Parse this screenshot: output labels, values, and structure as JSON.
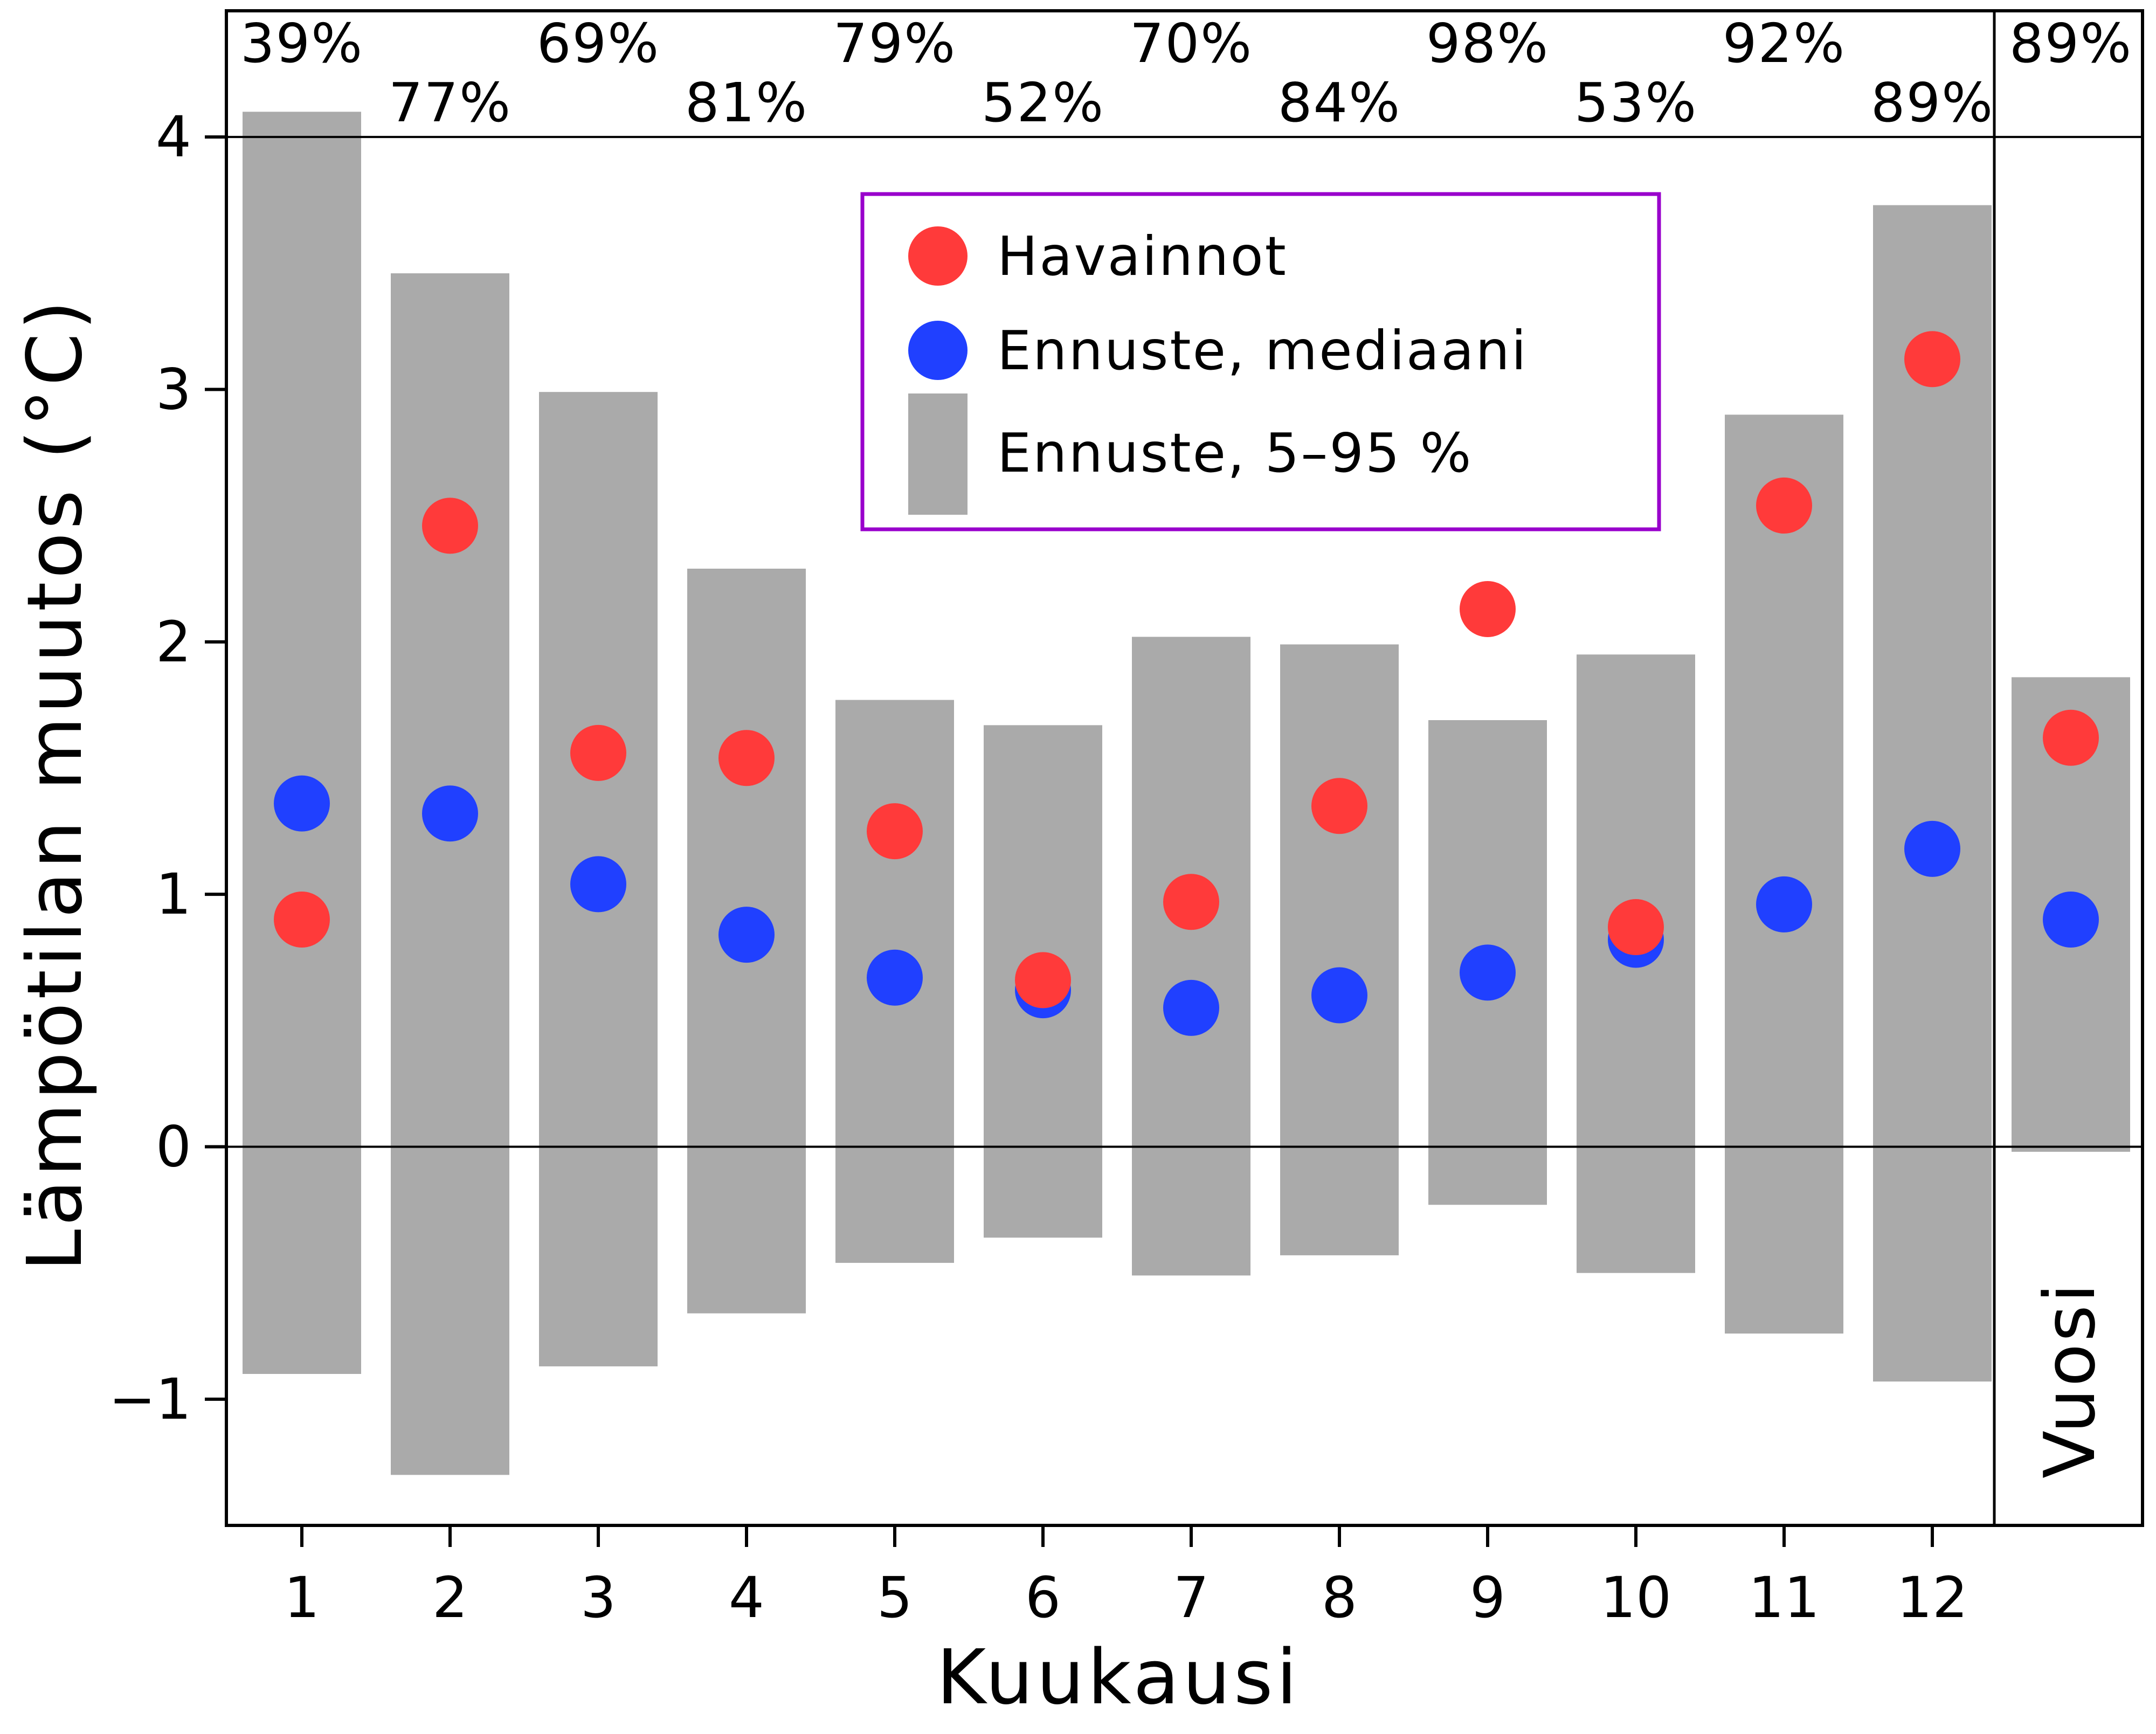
{
  "chart_data": {
    "type": "bar",
    "xlabel": "Kuukausi",
    "ylabel": "Lämpötilan muutos (°C)",
    "ylim": [
      -1.5,
      4.5
    ],
    "yticks": [
      -1,
      0,
      1,
      2,
      3,
      4
    ],
    "ytick_labels": [
      "−1",
      "0",
      "1",
      "2",
      "3",
      "4"
    ],
    "categories": [
      "1",
      "2",
      "3",
      "4",
      "5",
      "6",
      "7",
      "8",
      "9",
      "10",
      "11",
      "12"
    ],
    "annual_panel_label": "Vuosi",
    "reference_lines": [
      0,
      4
    ],
    "series": [
      {
        "name": "Ennuste, 5–95 %",
        "kind": "range",
        "color": "#aaaaaa",
        "low": [
          -0.9,
          -1.3,
          -0.87,
          -0.66,
          -0.46,
          -0.36,
          -0.51,
          -0.43,
          -0.23,
          -0.5,
          -0.74,
          -0.93
        ],
        "high": [
          4.1,
          3.46,
          2.99,
          2.29,
          1.77,
          1.67,
          2.02,
          1.99,
          1.69,
          1.95,
          2.9,
          3.73
        ],
        "annual": {
          "low": -0.02,
          "high": 1.86
        }
      },
      {
        "name": "Ennuste, mediaani",
        "kind": "point",
        "color": "#2040ff",
        "values": [
          1.36,
          1.32,
          1.04,
          0.84,
          0.67,
          0.62,
          0.55,
          0.6,
          0.69,
          0.82,
          0.96,
          1.18
        ],
        "annual": 0.9
      },
      {
        "name": "Havainnot",
        "kind": "point",
        "color": "#ff3a3a",
        "values": [
          0.9,
          2.46,
          1.56,
          1.54,
          1.25,
          0.66,
          0.97,
          1.35,
          2.13,
          0.87,
          2.54,
          3.12
        ],
        "annual": 1.62
      }
    ],
    "percentages": [
      "39%",
      "77%",
      "69%",
      "81%",
      "79%",
      "52%",
      "70%",
      "84%",
      "98%",
      "53%",
      "92%",
      "89%"
    ],
    "annual_percentage": "89%",
    "legend": {
      "placement": "top-center",
      "border_color": "#9900cc",
      "entries": [
        "Havainnot",
        "Ennuste, mediaani",
        "Ennuste, 5–95 %"
      ]
    },
    "grid": false
  }
}
